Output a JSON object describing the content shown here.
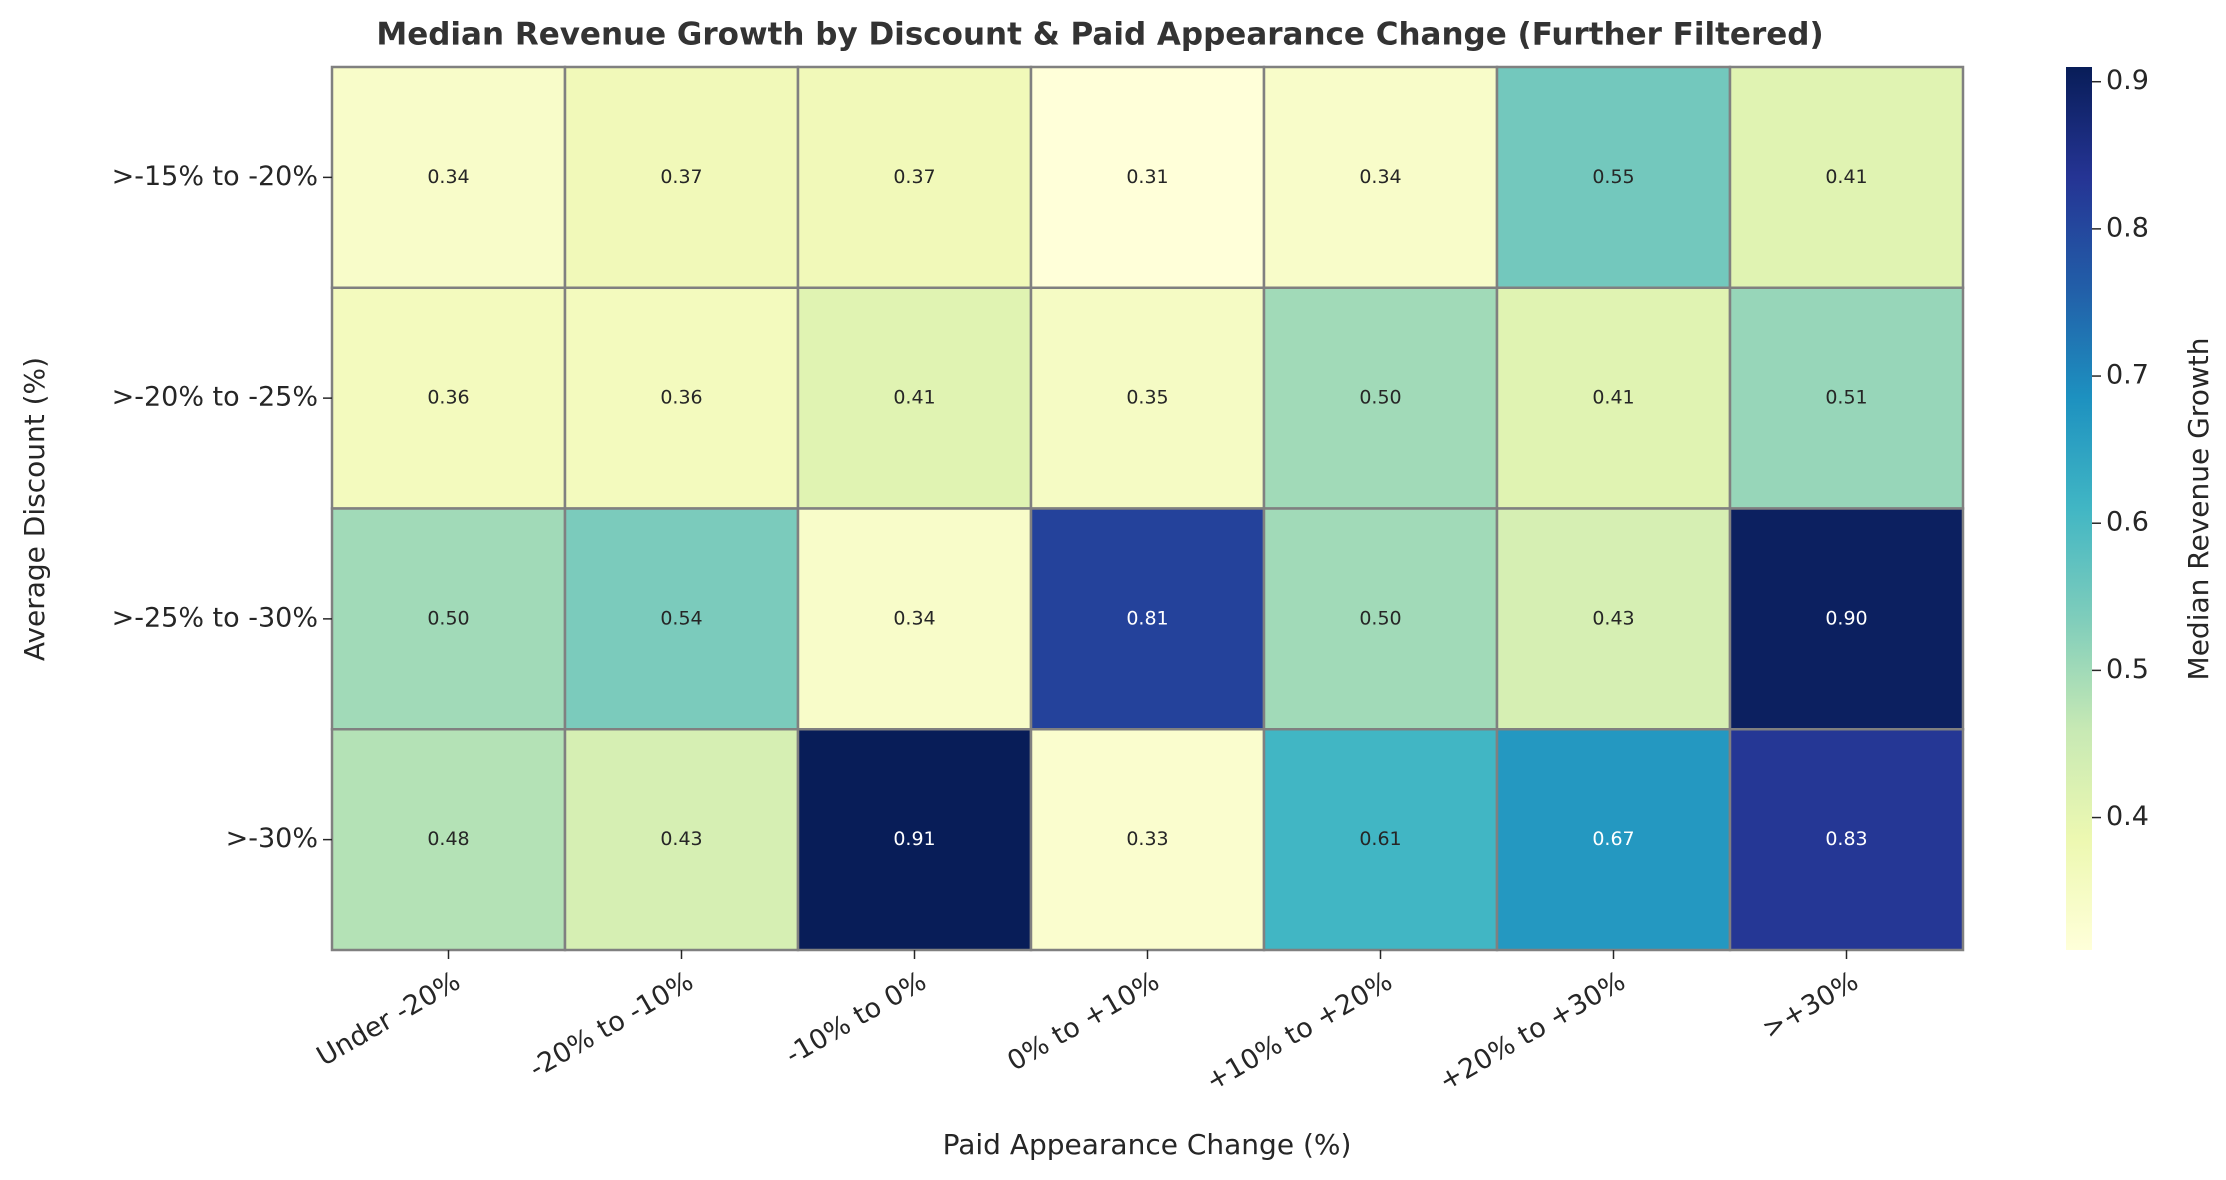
{
  "chart_data": {
    "type": "heatmap",
    "title": "Median Revenue Growth by Discount & Paid Appearance Change (Further Filtered)",
    "x_label": "Paid Appearance Change (%)",
    "y_label": "Average Discount (%)",
    "colorbar_label": "Median Revenue Growth",
    "colormap": "YlGnBu",
    "x_categories": [
      "Under -20%",
      "-20% to -10%",
      "-10% to 0%",
      "0% to +10%",
      "+10% to +20%",
      "+20% to +30%",
      ">+30%"
    ],
    "y_categories": [
      ">-15% to -20%",
      ">-20% to -25%",
      ">-25% to -30%",
      ">-30%"
    ],
    "values": [
      [
        0.34,
        0.37,
        0.37,
        0.31,
        0.34,
        0.55,
        0.41
      ],
      [
        0.36,
        0.36,
        0.41,
        0.35,
        0.5,
        0.41,
        0.51
      ],
      [
        0.5,
        0.54,
        0.34,
        0.81,
        0.5,
        0.43,
        0.9
      ],
      [
        0.48,
        0.43,
        0.91,
        0.33,
        0.61,
        0.67,
        0.83
      ]
    ],
    "value_labels": [
      [
        "0.34",
        "0.37",
        "0.37",
        "0.31",
        "0.34",
        "0.55",
        "0.41"
      ],
      [
        "0.36",
        "0.36",
        "0.41",
        "0.35",
        "0.50",
        "0.41",
        "0.51"
      ],
      [
        "0.50",
        "0.54",
        "0.34",
        "0.81",
        "0.50",
        "0.43",
        "0.90"
      ],
      [
        "0.48",
        "0.43",
        "0.91",
        "0.33",
        "0.61",
        "0.67",
        "0.83"
      ]
    ],
    "zlim": [
      0.31,
      0.91
    ],
    "zticks": [
      0.4,
      0.5,
      0.6,
      0.7,
      0.8,
      0.9
    ]
  }
}
